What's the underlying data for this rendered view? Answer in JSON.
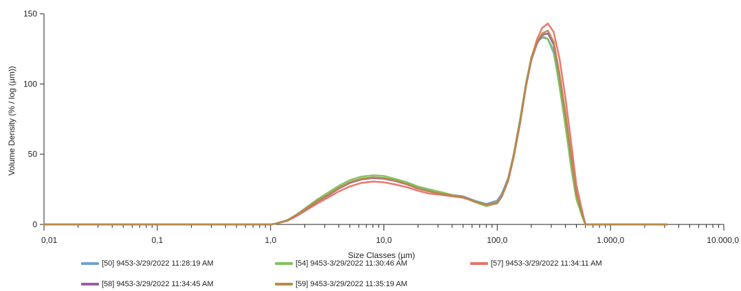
{
  "chart_data": {
    "type": "line",
    "title": "",
    "xlabel": "Size Classes (µm)",
    "ylabel": "Volume Density (% / log (µm))",
    "x_scale": "log",
    "xlim": [
      0.01,
      10000
    ],
    "ylim": [
      0,
      150
    ],
    "x_ticks": [
      0.01,
      0.1,
      1,
      10,
      100,
      1000,
      10000
    ],
    "x_tick_labels": [
      "0,01",
      "0,1",
      "1,0",
      "10,0",
      "100,0",
      "1.000,0",
      "10.000,0"
    ],
    "y_ticks": [
      0,
      50,
      100,
      150
    ],
    "y_tick_labels": [
      "0",
      "50",
      "100",
      "150"
    ],
    "grid": false,
    "legend_position": "bottom",
    "x": [
      0.01,
      0.02,
      0.05,
      0.1,
      0.2,
      0.5,
      1.0,
      1.1,
      1.4,
      1.7,
      2.1,
      2.6,
      3.2,
      4.0,
      5.0,
      6.3,
      8.0,
      10.0,
      12.5,
      16.0,
      20.0,
      25.0,
      32.0,
      40.0,
      50.0,
      63.0,
      80.0,
      100.0,
      110.0,
      125.0,
      140.0,
      160.0,
      180.0,
      200.0,
      225.0,
      250.0,
      280.0,
      315.0,
      355.0,
      400.0,
      450.0,
      500.0,
      560.0,
      600.0,
      630.0,
      1000.0,
      3160.0
    ],
    "series": [
      {
        "name": "[50] 9453-3/29/2022 11:28:19 AM",
        "color": "#6fa0d5",
        "values": [
          0,
          0,
          0,
          0,
          0,
          0,
          0,
          0.5,
          3,
          7,
          12,
          17,
          21,
          26,
          30,
          32.5,
          33.5,
          33,
          31.5,
          29,
          26,
          24,
          22,
          21,
          20,
          17,
          14.5,
          17,
          22,
          33,
          50,
          75,
          100,
          118,
          130,
          133,
          132,
          122,
          100,
          75,
          45,
          22,
          8,
          0,
          0,
          0,
          0
        ]
      },
      {
        "name": "[54] 9453-3/29/2022 11:30:46 AM",
        "color": "#7fc25f",
        "values": [
          0,
          0,
          0,
          0,
          0,
          0,
          0,
          0.5,
          3,
          7,
          12.5,
          18,
          22.5,
          27.5,
          31.5,
          34,
          35,
          34.5,
          32.5,
          30,
          27,
          25,
          23,
          21,
          19.5,
          16,
          13,
          15,
          20,
          32,
          50,
          76,
          101,
          119,
          131,
          134,
          132,
          124,
          98,
          70,
          40,
          18,
          6,
          0,
          0,
          0,
          0
        ]
      },
      {
        "name": "[57] 9453-3/29/2022 11:34:11 AM",
        "color": "#e8736b",
        "values": [
          0,
          0,
          0,
          0,
          0,
          0,
          0,
          0.5,
          2.5,
          6,
          10.5,
          15,
          19,
          23.5,
          27,
          29.5,
          30.5,
          30,
          28.5,
          26.5,
          24,
          22,
          21,
          20,
          19,
          16.5,
          14,
          15,
          20,
          31,
          48,
          73,
          99,
          118,
          132,
          140,
          143,
          137,
          118,
          90,
          58,
          28,
          10,
          0,
          0,
          0,
          0
        ]
      },
      {
        "name": "[58] 9453-3/29/2022 11:34:45 AM",
        "color": "#9a5fa5",
        "values": [
          0,
          0,
          0,
          0,
          0,
          0,
          0,
          0.5,
          2.8,
          6.8,
          11.5,
          16.5,
          20.5,
          25.5,
          29.5,
          32,
          33,
          32.5,
          31,
          28.5,
          25.5,
          23.5,
          21.8,
          20.5,
          19.5,
          16.5,
          14,
          15.5,
          20.5,
          32,
          49,
          74,
          99,
          117,
          129,
          135,
          136,
          128,
          106,
          78,
          48,
          22,
          8,
          0,
          0,
          0,
          0
        ]
      },
      {
        "name": "[59] 9453-3/29/2022 11:35:19 AM",
        "color": "#b98b44",
        "values": [
          0,
          0,
          0,
          0,
          0,
          0,
          0,
          0.5,
          2.8,
          6.9,
          11.8,
          16.8,
          21,
          26,
          30,
          32.5,
          33.5,
          33,
          31.3,
          28.8,
          25.8,
          23.6,
          21.9,
          20.6,
          19.6,
          16.6,
          14,
          15.5,
          20.5,
          32,
          49.5,
          74.5,
          100,
          118,
          130,
          136,
          138,
          130,
          107,
          79,
          48,
          22,
          8,
          0,
          0,
          0,
          0
        ]
      }
    ]
  }
}
